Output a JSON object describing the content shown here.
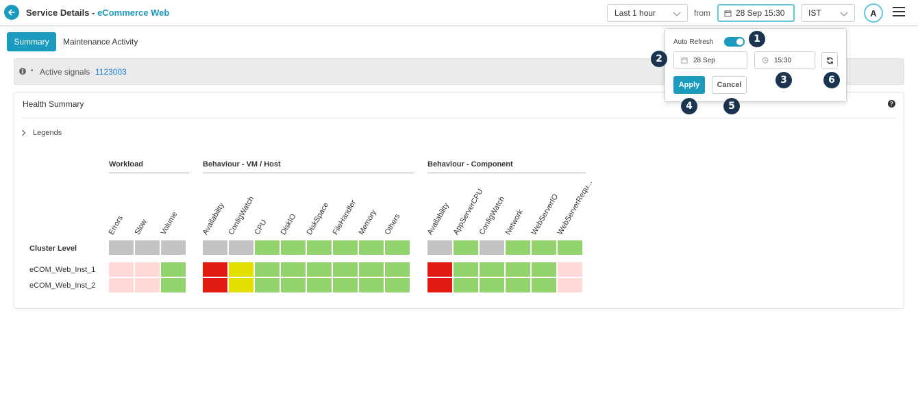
{
  "header": {
    "title": "Service Details -",
    "service_name": "eCommerce Web",
    "range": "Last 1 hour",
    "from_label": "from",
    "date_value": "28 Sep 15:30",
    "timezone": "IST",
    "avatar_initial": "A"
  },
  "tabs": {
    "summary": "Summary",
    "maintenance": "Maintenance Activity"
  },
  "signals": {
    "info_glyph": "i",
    "bullet": "•",
    "label": "Active signals",
    "value": "1123003"
  },
  "health": {
    "title": "Health Summary",
    "help_glyph": "?",
    "legends_label": "Legends",
    "groups": {
      "workload": "Workload",
      "vm_host": "Behaviour - VM / Host",
      "component": "Behaviour - Component"
    },
    "columns": {
      "errors": "Errors",
      "slow": "Slow",
      "volume": "Volume",
      "vm_availability": "Availability",
      "vm_configwatch": "ConfigWatch",
      "cpu": "CPU",
      "diskio": "DiskIO",
      "diskspace": "DiskSpace",
      "filehandler": "FileHandler",
      "memory": "Memory",
      "others": "Others",
      "comp_availability": "Availability",
      "appservercpu": "AppServerCPU",
      "comp_configwatch": "ConfigWatch",
      "network": "Network",
      "webserverio": "WebServerIO",
      "webserverreq": "WebServerRequ..."
    },
    "rows": {
      "cluster": "Cluster Level",
      "inst1": "eCOM_Web_Inst_1",
      "inst2": "eCOM_Web_Inst_2"
    },
    "status_colors": {
      "gray": "#c3c3c3",
      "green": "#92d36e",
      "red": "#e31a12",
      "yellow": "#e3e000",
      "pink": "#ffd9d6"
    },
    "grid": {
      "workload": [
        [
          "gray",
          "gray",
          "gray"
        ],
        [
          "pink",
          "pink",
          "green"
        ],
        [
          "pink",
          "pink",
          "green"
        ]
      ],
      "vm_host": [
        [
          "gray",
          "gray",
          "green",
          "green",
          "green",
          "green",
          "green",
          "green"
        ],
        [
          "red",
          "yellow",
          "green",
          "green",
          "green",
          "green",
          "green",
          "green"
        ],
        [
          "red",
          "yellow",
          "green",
          "green",
          "green",
          "green",
          "green",
          "green"
        ]
      ],
      "component": [
        [
          "gray",
          "green",
          "gray",
          "green",
          "green",
          "green"
        ],
        [
          "red",
          "green",
          "green",
          "green",
          "green",
          "pink"
        ],
        [
          "red",
          "green",
          "green",
          "green",
          "green",
          "pink"
        ]
      ]
    }
  },
  "popup": {
    "auto_refresh_label": "Auto Refresh",
    "auto_refresh_on": true,
    "date": "28 Sep",
    "time": "15:30",
    "apply": "Apply",
    "cancel": "Cancel"
  },
  "badges": [
    "1",
    "2",
    "3",
    "4",
    "5",
    "6"
  ]
}
